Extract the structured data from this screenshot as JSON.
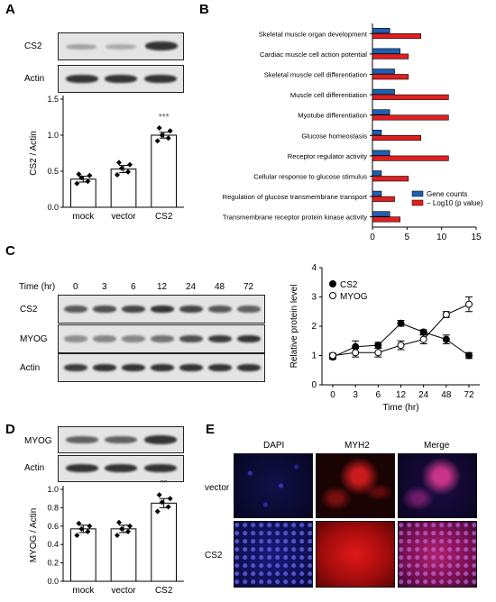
{
  "panels": {
    "A": {
      "letter": "A",
      "blot_labels": [
        "CS2",
        "Actin"
      ],
      "chart_data": {
        "type": "bar",
        "categories": [
          "mock",
          "vector",
          "CS2"
        ],
        "values": [
          0.39,
          0.53,
          1.0
        ],
        "errors": [
          0.04,
          0.05,
          0.04
        ],
        "points": [
          [
            0.33,
            0.36,
            0.41,
            0.44,
            0.46
          ],
          [
            0.45,
            0.49,
            0.54,
            0.59,
            0.62
          ],
          [
            0.92,
            0.96,
            1.0,
            1.06,
            1.1
          ]
        ],
        "ylabel": "CS2 / Actin",
        "ylim": [
          0,
          1.5
        ],
        "yticks": [
          "0.0",
          "0.5",
          "1.0",
          "1.5"
        ],
        "annotation": "***"
      }
    },
    "B": {
      "letter": "B",
      "chart_data": {
        "type": "bar",
        "orientation": "horizontal",
        "categories": [
          "Skeletal muscle organ development",
          "Cardiac muscle cell action potential",
          "Skeletal muscle cell differentiation",
          "Muscle cell differentiation",
          "Myotube differentiation",
          "Glucose homeostasis",
          "Receptor regulator activity",
          "Cellular response to glucose stimulus",
          "Regulation of glucose transmembrane transport",
          "Transmembrane receptor protein kinase activity"
        ],
        "series": [
          {
            "name": "Gene counts",
            "color": "#1f5fb0",
            "values": [
              2.5,
              4,
              3.2,
              3.2,
              2.5,
              1.3,
              2.5,
              1.3,
              1.3,
              2.5
            ]
          },
          {
            "name": "− Log10 (p value)",
            "color": "#e02020",
            "values": [
              7,
              5.2,
              5.2,
              11,
              11,
              7,
              11,
              5.2,
              3.2,
              4
            ]
          }
        ],
        "xlim": [
          0,
          15
        ],
        "xticks": [
          "0",
          "5",
          "10",
          "15"
        ],
        "legend": "bottom-right"
      }
    },
    "C": {
      "letter": "C",
      "time_header": "Time (hr)",
      "time_points": [
        "0",
        "3",
        "6",
        "12",
        "24",
        "48",
        "72"
      ],
      "blot_labels": [
        "CS2",
        "MYOG",
        "Actin"
      ],
      "chart_data": {
        "type": "line",
        "x": [
          "0",
          "3",
          "6",
          "12",
          "24",
          "48",
          "72"
        ],
        "series": [
          {
            "name": "CS2",
            "marker": "filled",
            "values": [
              0.95,
              1.3,
              1.35,
              2.1,
              1.8,
              1.55,
              1.0
            ],
            "errors": [
              0.08,
              0.2,
              0.1,
              0.1,
              0.08,
              0.15,
              0.1
            ]
          },
          {
            "name": "MYOG",
            "marker": "open",
            "values": [
              1.0,
              1.1,
              1.1,
              1.35,
              1.55,
              2.4,
              2.75
            ],
            "errors": [
              0.08,
              0.15,
              0.15,
              0.15,
              0.15,
              0.1,
              0.25
            ]
          }
        ],
        "ylabel": "Relative protein level",
        "xlabel": "Time (hr)",
        "ylim": [
          0,
          4
        ],
        "yticks": [
          "0",
          "1",
          "2",
          "3",
          "4"
        ],
        "legend": "top-left"
      }
    },
    "D": {
      "letter": "D",
      "blot_labels": [
        "MYOG",
        "Actin"
      ],
      "chart_data": {
        "type": "bar",
        "categories": [
          "mock",
          "vector",
          "CS2"
        ],
        "values": [
          0.57,
          0.57,
          0.85
        ],
        "errors": [
          0.04,
          0.04,
          0.05
        ],
        "points": [
          [
            0.5,
            0.54,
            0.57,
            0.6,
            0.63
          ],
          [
            0.5,
            0.54,
            0.57,
            0.6,
            0.64
          ],
          [
            0.76,
            0.81,
            0.86,
            0.9,
            0.94
          ]
        ],
        "ylabel": "MYOG / Actin",
        "ylim": [
          0,
          1.0
        ],
        "yticks": [
          "0.0",
          "0.2",
          "0.4",
          "0.6",
          "0.8",
          "1.0"
        ],
        "annotation": "**"
      }
    },
    "E": {
      "letter": "E",
      "columns": [
        "DAPI",
        "MYH2",
        "Merge"
      ],
      "rows": [
        "vector",
        "CS2"
      ]
    }
  }
}
